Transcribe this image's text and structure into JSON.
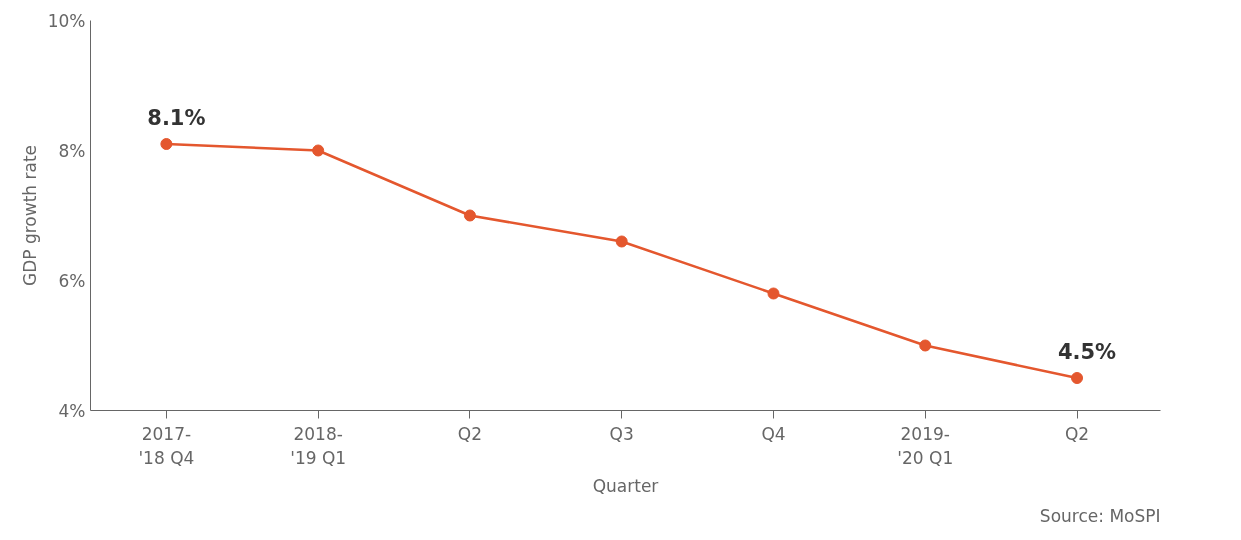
{
  "chart_data": {
    "type": "line",
    "xlabel": "Quarter",
    "ylabel": "GDP growth rate",
    "categories": [
      "2017-\n'18 Q4",
      "2018-\n'19 Q1",
      "Q2",
      "Q3",
      "Q4",
      "2019-\n'20 Q1",
      "Q2"
    ],
    "series": [
      {
        "color": "#e4572e",
        "values": [
          8.1,
          8.0,
          7.0,
          6.6,
          5.8,
          5.0,
          4.5
        ],
        "value_labels": [
          "8.1%",
          null,
          null,
          null,
          null,
          null,
          "4.5%"
        ]
      }
    ],
    "ylim": [
      4,
      10
    ],
    "yticks": [
      {
        "value": 4,
        "label": "4%"
      },
      {
        "value": 6,
        "label": "6%"
      },
      {
        "value": 8,
        "label": "8%"
      },
      {
        "value": 10,
        "label": "10%"
      }
    ],
    "grid": false,
    "marker": "circle",
    "line_style": "solid",
    "annotations": [
      "Source: MoSPI"
    ]
  }
}
